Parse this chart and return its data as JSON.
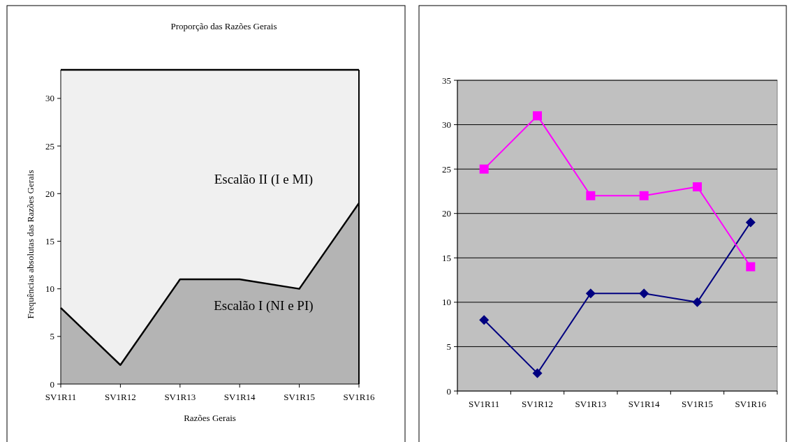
{
  "chart_data": [
    {
      "type": "area",
      "title": "Proporção das Razões Gerais",
      "xlabel": "Razões Gerais",
      "ylabel": "Frequências absolutas das Razões Gerais",
      "categories": [
        "SV1R11",
        "SV1R12",
        "SV1R13",
        "SV1R14",
        "SV1R15",
        "SV1R16"
      ],
      "stacked": true,
      "ylim": [
        0,
        33
      ],
      "yticks": [
        0,
        5,
        10,
        15,
        20,
        25,
        30
      ],
      "grid": false,
      "series": [
        {
          "name": "Escalão I (NI e PI)",
          "color": "#b4b4b4",
          "values": [
            8,
            2,
            11,
            11,
            10,
            19
          ]
        },
        {
          "name": "Escalão II (I e MI)",
          "color": "#f0f0f0",
          "values": [
            25,
            31,
            22,
            22,
            23,
            14
          ]
        }
      ]
    },
    {
      "type": "line",
      "categories": [
        "SV1R11",
        "SV1R12",
        "SV1R13",
        "SV1R14",
        "SV1R15",
        "SV1R16"
      ],
      "ylim": [
        0,
        35
      ],
      "yticks": [
        0,
        5,
        10,
        15,
        20,
        25,
        30,
        35
      ],
      "grid": "y",
      "series": [
        {
          "color": "#000080",
          "marker": "diamond",
          "values": [
            8,
            2,
            11,
            11,
            10,
            19
          ]
        },
        {
          "color": "#ff00ff",
          "marker": "square",
          "values": [
            25,
            31,
            22,
            22,
            23,
            14
          ]
        }
      ]
    }
  ]
}
